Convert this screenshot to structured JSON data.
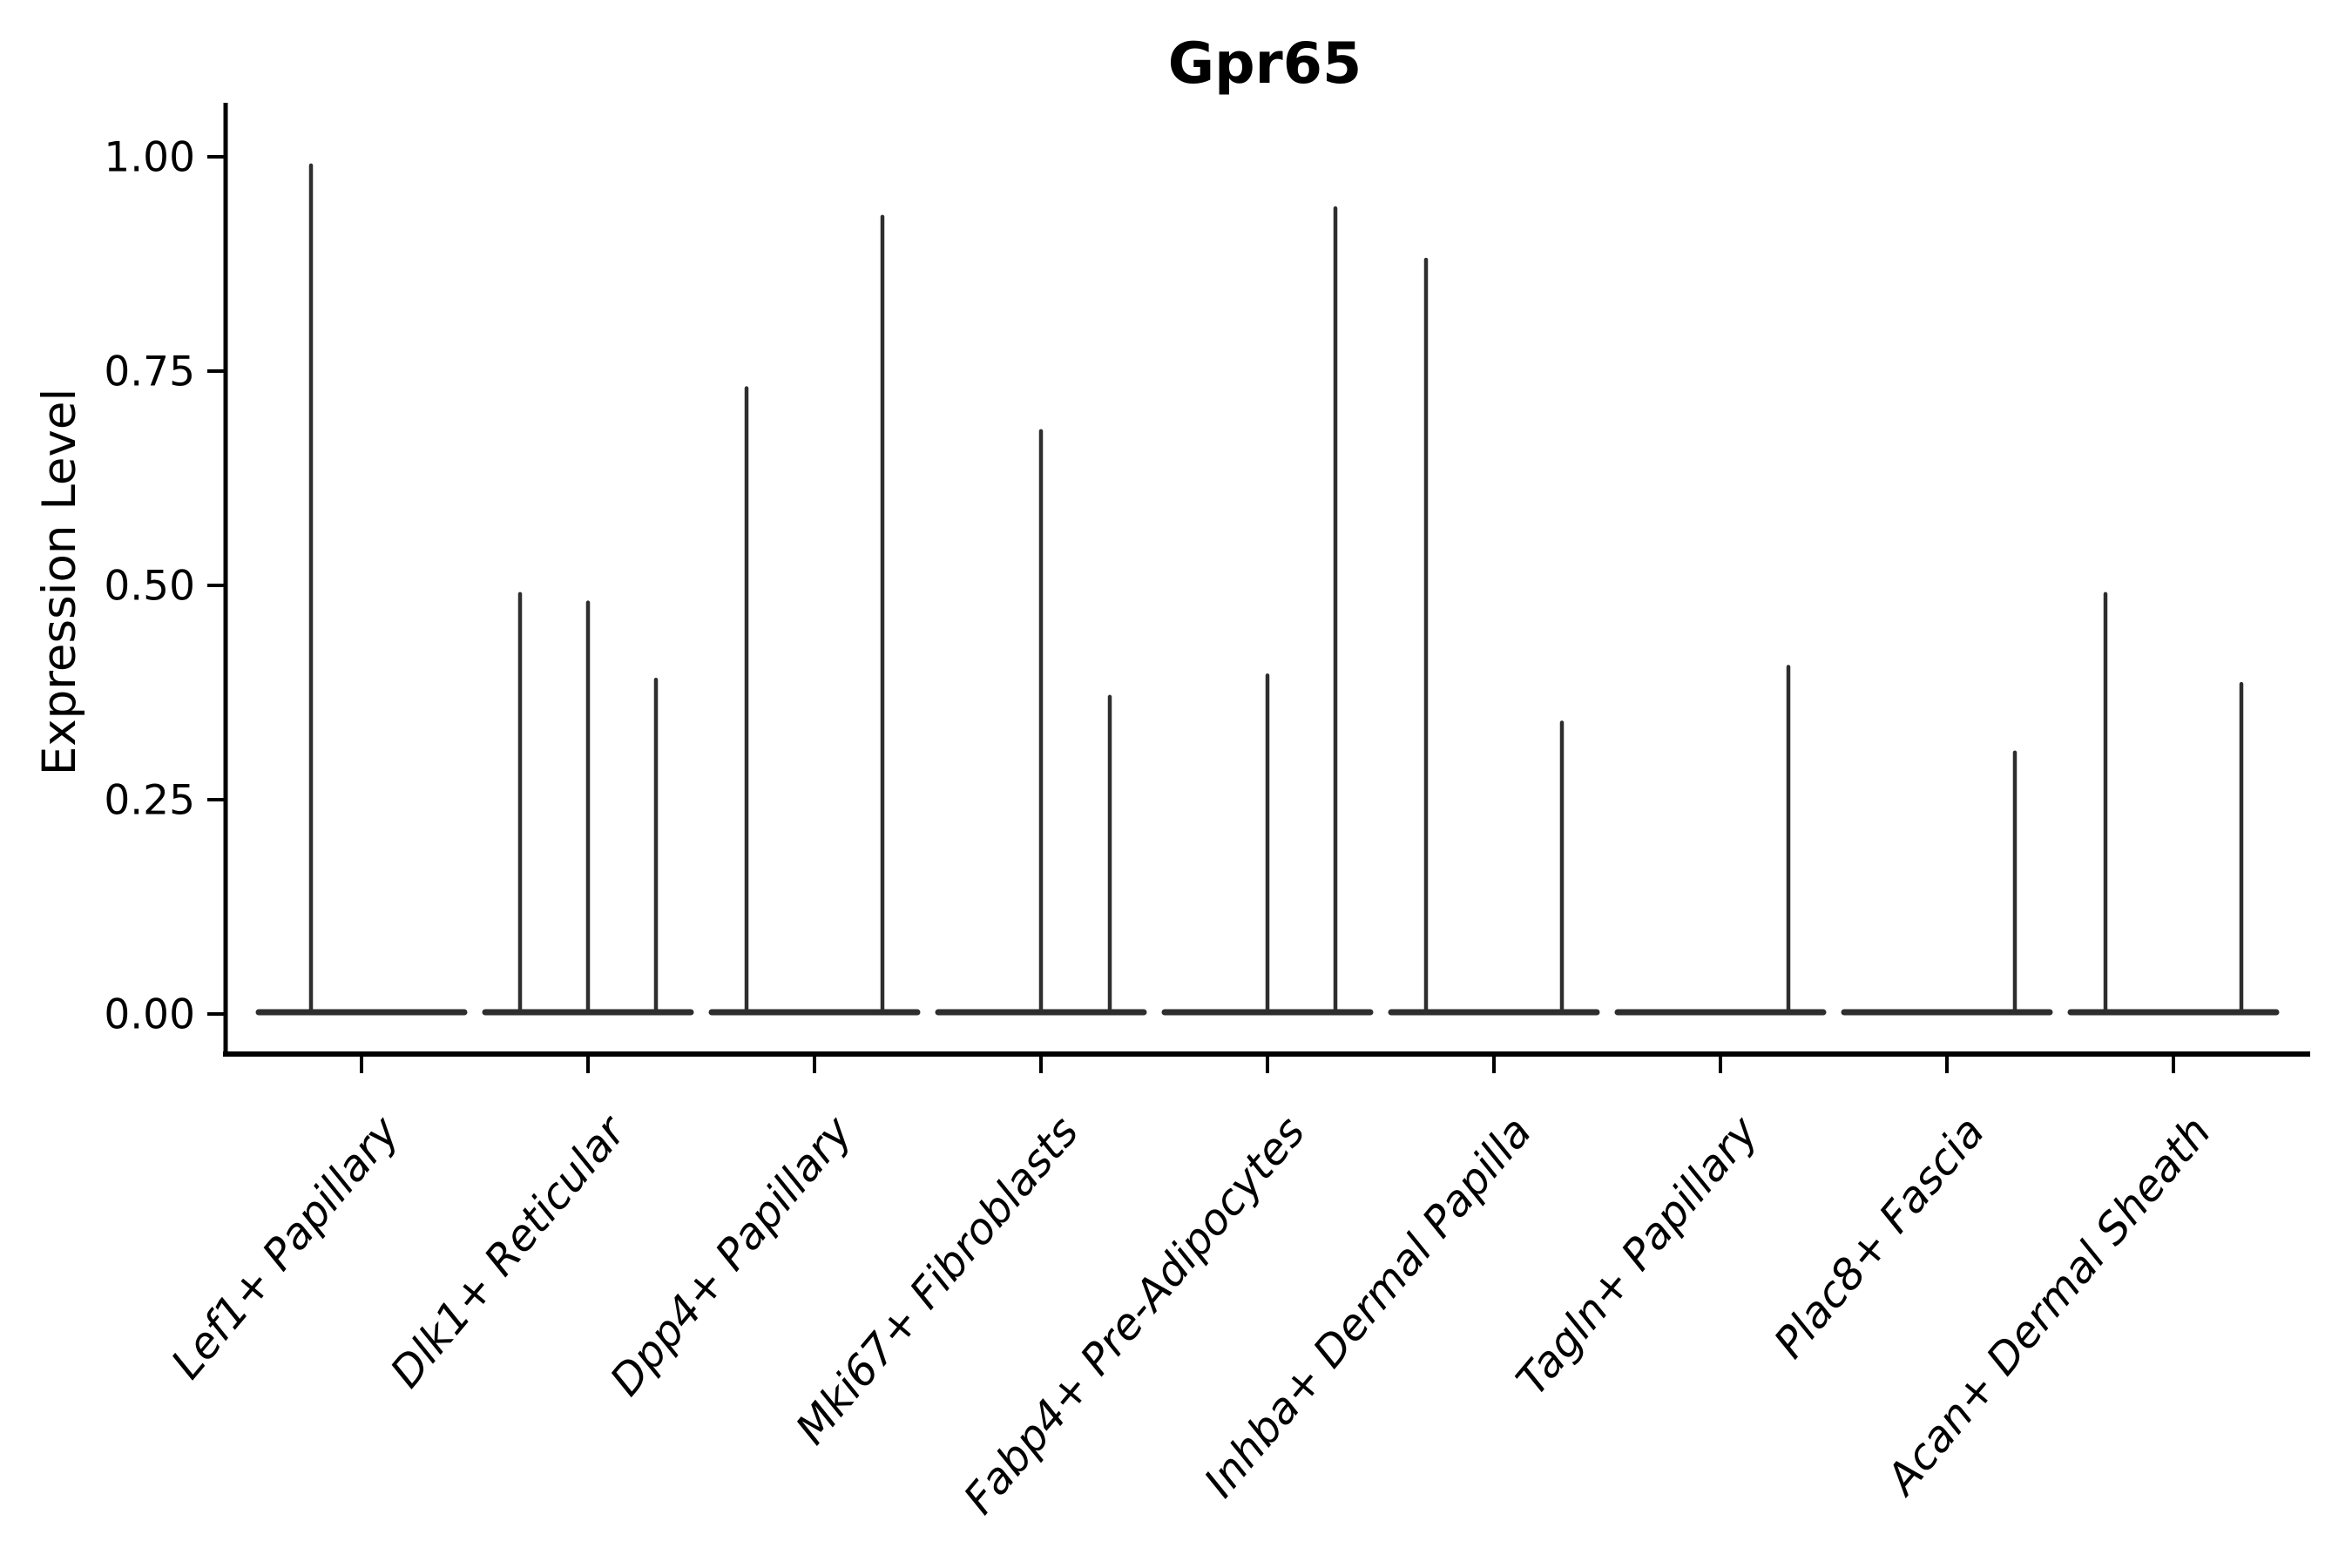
{
  "title": "Gpr65",
  "chart_data": {
    "type": "violin",
    "title": "Gpr65",
    "xlabel": "",
    "ylabel": "Expression Level",
    "ylim": [
      0,
      1.07
    ],
    "grid": false,
    "legend": "none",
    "background_color": "#ffffff",
    "axis_color": "#000000",
    "violin_color": "#2e2e2e",
    "xtick_rotation_deg": 50,
    "xticklabel_style": "italic",
    "yticks": [
      {
        "value": 0.0,
        "label": "0.00"
      },
      {
        "value": 0.25,
        "label": "0.25"
      },
      {
        "value": 0.5,
        "label": "0.50"
      },
      {
        "value": 0.75,
        "label": "0.75"
      },
      {
        "value": 1.0,
        "label": "1.00"
      }
    ],
    "categories": [
      {
        "label": "Lef1+ Papillary",
        "violins": [
          {
            "offset": -58,
            "max": 0.99
          }
        ]
      },
      {
        "label": "Dlk1+ Reticular",
        "violins": [
          {
            "offset": -78,
            "max": 0.49
          },
          {
            "offset": 0,
            "max": 0.48
          },
          {
            "offset": 78,
            "max": 0.39
          }
        ]
      },
      {
        "label": "Dpp4+ Papillary",
        "violins": [
          {
            "offset": -78,
            "max": 0.73
          },
          {
            "offset": 78,
            "max": 0.93
          }
        ]
      },
      {
        "label": "Mki67+ Fibroblasts",
        "violins": [
          {
            "offset": 0,
            "max": 0.68
          },
          {
            "offset": 79,
            "max": 0.37
          }
        ]
      },
      {
        "label": "Fabp4+ Pre-Adipocytes",
        "violins": [
          {
            "offset": 0,
            "max": 0.395
          },
          {
            "offset": 78,
            "max": 0.94
          }
        ]
      },
      {
        "label": "Inhba+ Dermal Papilla",
        "violins": [
          {
            "offset": -78,
            "max": 0.88
          },
          {
            "offset": 78,
            "max": 0.34
          }
        ]
      },
      {
        "label": "Tagln+ Papillary",
        "violins": [
          {
            "offset": 78,
            "max": 0.405
          }
        ]
      },
      {
        "label": "Plac8+ Fascia",
        "violins": [
          {
            "offset": 78,
            "max": 0.305
          }
        ]
      },
      {
        "label": "Acan+ Dermal Sheath",
        "violins": [
          {
            "offset": -78,
            "max": 0.49
          },
          {
            "offset": 78,
            "max": 0.385
          }
        ]
      }
    ]
  }
}
